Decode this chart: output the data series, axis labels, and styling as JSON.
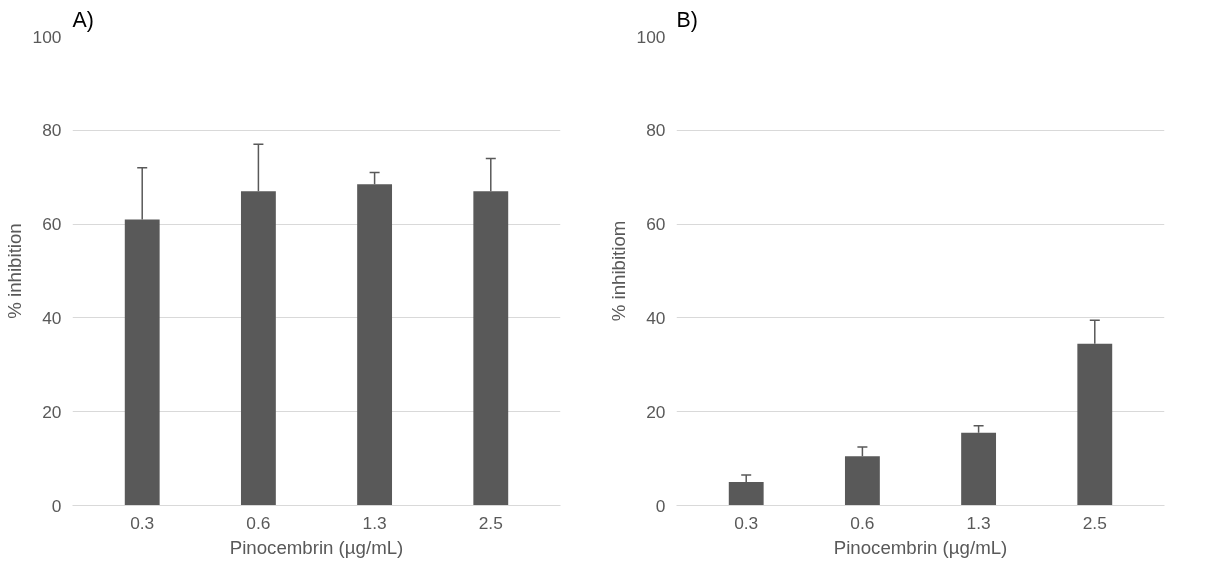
{
  "chart_data": [
    {
      "type": "bar",
      "title": "A)",
      "categories": [
        "0.3",
        "0.6",
        "1.3",
        "2.5"
      ],
      "values": [
        61,
        67,
        68.5,
        67
      ],
      "errors": [
        [
          61,
          72
        ],
        [
          67,
          77
        ],
        [
          68.5,
          71
        ],
        [
          67,
          74
        ]
      ],
      "color": "#595959",
      "xlabel": "Pinocembrin (µg/mL)",
      "ylabel": "% inhibition",
      "ylim": [
        0,
        100
      ],
      "yticks": [
        0,
        20,
        40,
        60,
        80,
        100
      ],
      "grid": "y"
    },
    {
      "type": "bar",
      "title": "B)",
      "categories": [
        "0.3",
        "0.6",
        "1.3",
        "2.5"
      ],
      "values": [
        5,
        10.5,
        15.5,
        34.5
      ],
      "errors": [
        [
          5,
          6.5
        ],
        [
          10.5,
          12.5
        ],
        [
          15.5,
          17
        ],
        [
          34.5,
          39.5
        ]
      ],
      "color": "#595959",
      "xlabel": "Pinocembrin (µg/mL)",
      "ylabel": "% inhibitiom",
      "ylim": [
        0,
        100
      ],
      "yticks": [
        0,
        20,
        40,
        60,
        80,
        100
      ],
      "grid": "y"
    }
  ]
}
